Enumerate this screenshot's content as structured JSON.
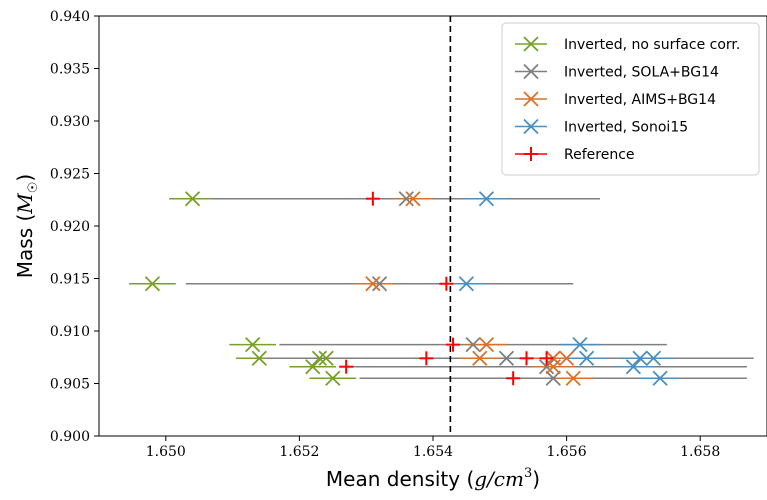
{
  "chart_data": {
    "type": "scatter",
    "xlabel": "Mean density (g/cm³)",
    "xlabel_text": "Mean density (",
    "xlabel_math": "g/cm",
    "xlabel_sup": "3",
    "xlabel_close": ")",
    "ylabel": "Mass (M☉)",
    "ylabel_text": "Mass (",
    "ylabel_math": "M",
    "ylabel_sub": "☉",
    "ylabel_close": ")",
    "xlim": [
      1.649,
      1.659
    ],
    "ylim": [
      0.9,
      0.94
    ],
    "xticks": [
      "1.650",
      "1.652",
      "1.654",
      "1.656",
      "1.658"
    ],
    "xtick_values": [
      1.65,
      1.652,
      1.654,
      1.656,
      1.658
    ],
    "yticks": [
      "0.900",
      "0.905",
      "0.910",
      "0.915",
      "0.920",
      "0.925",
      "0.930",
      "0.935",
      "0.940"
    ],
    "ytick_values": [
      0.9,
      0.905,
      0.91,
      0.915,
      0.92,
      0.925,
      0.93,
      0.935,
      0.94
    ],
    "vline_x": 1.65426,
    "grid": false,
    "legend_position": "top-right",
    "series": [
      {
        "name": "Inverted, no surface corr.",
        "color": "#77a02a",
        "marker": "x",
        "points": [
          {
            "x": 1.6504,
            "y": 0.9226,
            "xerr": 0.00035
          },
          {
            "x": 1.6498,
            "y": 0.9145,
            "xerr": 0.00035
          },
          {
            "x": 1.6513,
            "y": 0.9087,
            "xerr": 0.00035
          },
          {
            "x": 1.6514,
            "y": 0.9074,
            "xerr": 0.00035
          },
          {
            "x": 1.6523,
            "y": 0.9074,
            "xerr": 0.00035
          },
          {
            "x": 1.6524,
            "y": 0.9074,
            "xerr": 0.00035
          },
          {
            "x": 1.6522,
            "y": 0.9066,
            "xerr": 0.00035
          },
          {
            "x": 1.6525,
            "y": 0.9055,
            "xerr": 0.00035
          }
        ]
      },
      {
        "name": "Inverted, SOLA+BG14",
        "color": "#7f7f7f",
        "marker": "x",
        "points": [
          {
            "x": 1.6536,
            "y": 0.9226,
            "xerr": [
              0.0029,
              0.0029
            ]
          },
          {
            "x": 1.6532,
            "y": 0.9145,
            "xerr": [
              0.0029,
              0.0029
            ]
          },
          {
            "x": 1.6546,
            "y": 0.9087,
            "xerr": [
              0.0029,
              0.0029
            ]
          },
          {
            "x": 1.6551,
            "y": 0.9074,
            "xerr": [
              0.0036,
              0.0036
            ]
          },
          {
            "x": 1.6558,
            "y": 0.9074,
            "xerr": [
              0.003,
              0.003
            ]
          },
          {
            "x": 1.6557,
            "y": 0.9066,
            "xerr": [
              0.003,
              0.003
            ]
          },
          {
            "x": 1.6558,
            "y": 0.9055,
            "xerr": [
              0.0029,
              0.0029
            ]
          }
        ]
      },
      {
        "name": "Inverted, AIMS+BG14",
        "color": "#d8722a",
        "marker": "x",
        "points": [
          {
            "x": 1.6537,
            "y": 0.9226,
            "xerr": 0.0003
          },
          {
            "x": 1.6531,
            "y": 0.9145,
            "xerr": 0.0003
          },
          {
            "x": 1.6548,
            "y": 0.9087,
            "xerr": 0.0003
          },
          {
            "x": 1.6547,
            "y": 0.9074,
            "xerr": 0.0003
          },
          {
            "x": 1.6558,
            "y": 0.9074,
            "xerr": 0.0003
          },
          {
            "x": 1.656,
            "y": 0.9074,
            "xerr": 0.0003
          },
          {
            "x": 1.6558,
            "y": 0.9066,
            "xerr": 0.0003
          },
          {
            "x": 1.6561,
            "y": 0.9055,
            "xerr": 0.0003
          }
        ]
      },
      {
        "name": "Inverted, Sonoi15",
        "color": "#4a8fc0",
        "marker": "x",
        "points": [
          {
            "x": 1.6548,
            "y": 0.9226,
            "xerr": 0.0003
          },
          {
            "x": 1.6545,
            "y": 0.9145,
            "xerr": 0.0003
          },
          {
            "x": 1.6562,
            "y": 0.9087,
            "xerr": 0.0003
          },
          {
            "x": 1.6563,
            "y": 0.9074,
            "xerr": 0.0003
          },
          {
            "x": 1.6571,
            "y": 0.9074,
            "xerr": 0.0003
          },
          {
            "x": 1.6573,
            "y": 0.9074,
            "xerr": 0.0003
          },
          {
            "x": 1.657,
            "y": 0.9066,
            "xerr": 0.0003
          },
          {
            "x": 1.6574,
            "y": 0.9055,
            "xerr": 0.0003
          }
        ]
      },
      {
        "name": "Reference",
        "color": "#ff0000",
        "marker": "+",
        "points": [
          {
            "x": 1.6531,
            "y": 0.9226
          },
          {
            "x": 1.6542,
            "y": 0.9145
          },
          {
            "x": 1.6543,
            "y": 0.9087
          },
          {
            "x": 1.6539,
            "y": 0.9074
          },
          {
            "x": 1.6554,
            "y": 0.9074
          },
          {
            "x": 1.6557,
            "y": 0.9074
          },
          {
            "x": 1.6527,
            "y": 0.9066
          },
          {
            "x": 1.6552,
            "y": 0.9055
          }
        ]
      }
    ]
  }
}
